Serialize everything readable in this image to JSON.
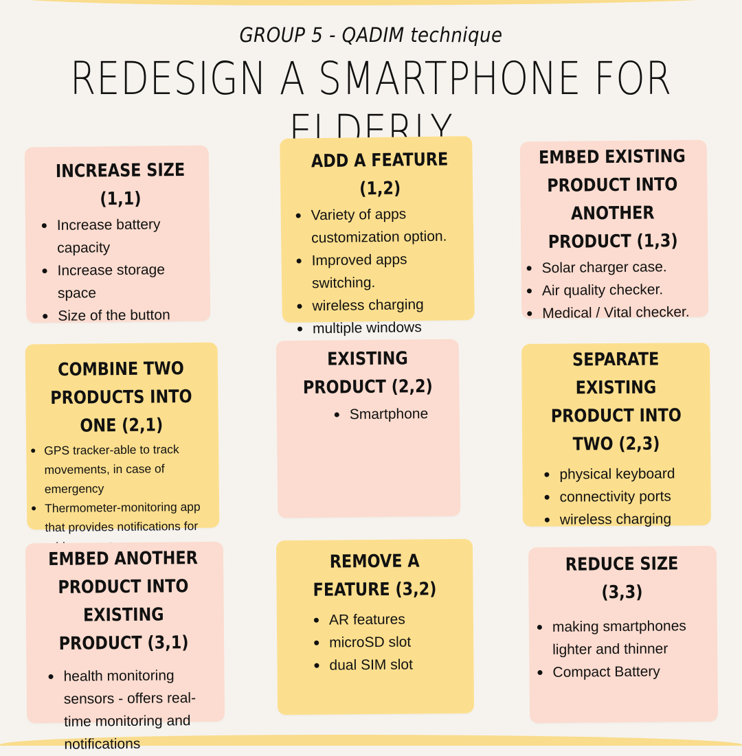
{
  "header": {
    "subtitle": "GROUP 5 - QADIM technique",
    "title": "REDESIGN A SMARTPHONE FOR ELDERLY"
  },
  "cards": [
    {
      "title": "INCREASE SIZE (1,1)",
      "items": [
        "Increase battery capacity",
        "Increase storage space",
        "Size of the button"
      ]
    },
    {
      "title": "ADD A FEATURE (1,2)",
      "items": [
        "Variety of apps customization option.",
        "Improved apps switching.",
        "wireless charging",
        "multiple windows"
      ]
    },
    {
      "title": "EMBED EXISTING PRODUCT INTO ANOTHER PRODUCT (1,3)",
      "items": [
        "Solar charger case.",
        "Air quality checker.",
        "Medical / Vital checker."
      ]
    },
    {
      "title": "COMBINE TWO PRODUCTS INTO ONE (2,1)",
      "items": [
        "GPS tracker-able to track movements, in case of emergency",
        "Thermometer-monitoring app that provides notifications for odd parameters"
      ]
    },
    {
      "title": "EXISTING PRODUCT (2,2)",
      "items": [
        "Smartphone"
      ]
    },
    {
      "title": "SEPARATE EXISTING PRODUCT INTO TWO (2,3)",
      "items": [
        "physical keyboard",
        "connectivity ports",
        "wireless charging"
      ]
    },
    {
      "title": "EMBED ANOTHER PRODUCT INTO EXISTING PRODUCT (3,1)",
      "items": [
        "health monitoring sensors - offers real-time monitoring and notifications"
      ]
    },
    {
      "title": "REMOVE A FEATURE (3,2)",
      "items": [
        "AR features",
        "microSD slot",
        "dual SIM slot"
      ]
    },
    {
      "title": "REDUCE SIZE (3,3)",
      "items": [
        "making smartphones lighter and thinner",
        "Compact Battery"
      ]
    }
  ],
  "colors": {
    "pink": "#fcdcd0",
    "yellow": "#fcdf8e",
    "background": "#f6f3ee"
  }
}
